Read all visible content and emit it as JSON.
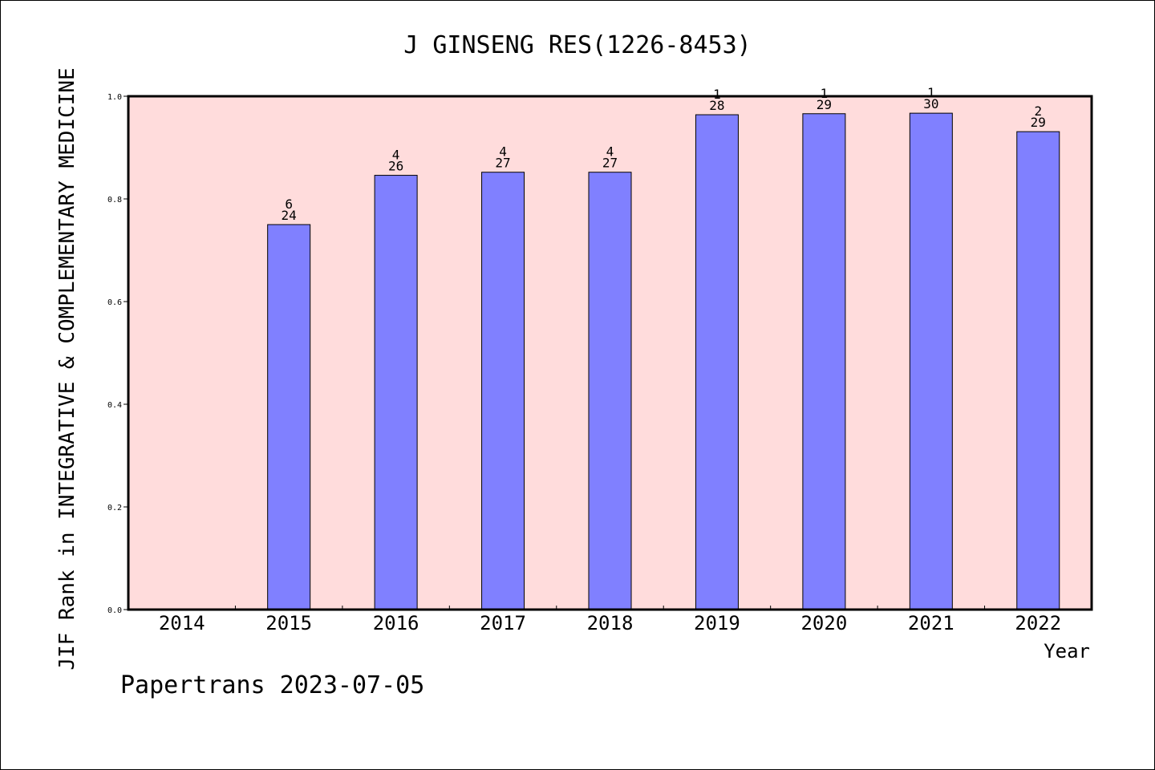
{
  "chart_data": {
    "type": "bar",
    "title": "J GINSENG RES(1226-8453)",
    "xlabel": "Year",
    "ylabel": "JIF Rank in INTEGRATIVE & COMPLEMENTARY MEDICINE",
    "ylim": [
      0,
      1.0
    ],
    "yticks": [
      "0.0",
      "0.2",
      "0.4",
      "0.6",
      "0.8",
      "1.0"
    ],
    "categories": [
      "2014",
      "2015",
      "2016",
      "2017",
      "2018",
      "2019",
      "2020",
      "2021",
      "2022"
    ],
    "values": [
      null,
      0.75,
      0.846,
      0.852,
      0.852,
      0.964,
      0.966,
      0.967,
      0.931
    ],
    "ranks": [
      "",
      "6",
      "4",
      "4",
      "4",
      "1",
      "1",
      "1",
      "2"
    ],
    "totals": [
      "",
      "24",
      "26",
      "27",
      "27",
      "28",
      "29",
      "30",
      "29"
    ],
    "grid": false,
    "plot_background": "#ffdcdc",
    "bar_color": "#8080ff"
  },
  "footer": "Papertrans 2023-07-05"
}
